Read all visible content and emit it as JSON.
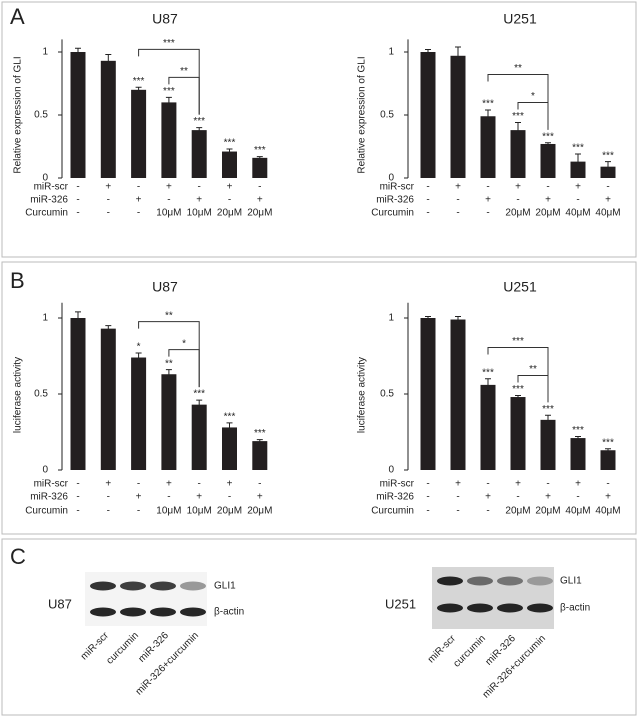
{
  "panel_labels": [
    "A",
    "B",
    "C"
  ],
  "chart_data": [
    {
      "type": "bar",
      "title": "U87",
      "y_label": "Relative expression of GLI",
      "color": "#231f20",
      "values": [
        1.0,
        0.93,
        0.7,
        0.6,
        0.38,
        0.21,
        0.16
      ],
      "errors": [
        0.03,
        0.05,
        0.02,
        0.04,
        0.02,
        0.02,
        0.01
      ],
      "stars": [
        null,
        null,
        "***",
        "***",
        "***",
        "***",
        "***"
      ],
      "brackets": [
        "***",
        "**"
      ],
      "ylim": [
        0,
        1.1
      ],
      "yticks": [
        0,
        0.5,
        1
      ],
      "conditions": [
        {
          "name": "miR-scr",
          "values": [
            "-",
            "+",
            "-",
            "+",
            "-",
            "+",
            "-"
          ]
        },
        {
          "name": "miR-326",
          "values": [
            "-",
            "-",
            "+",
            "-",
            "+",
            "-",
            "+"
          ]
        },
        {
          "name": "Curcumin",
          "values": [
            "-",
            "-",
            "-",
            "10μM",
            "10μM",
            "20μM",
            "20μM"
          ]
        }
      ]
    },
    {
      "type": "bar",
      "title": "U251",
      "y_label": "Relative expression of GLI",
      "color": "#231f20",
      "values": [
        1.0,
        0.97,
        0.49,
        0.38,
        0.27,
        0.13,
        0.09
      ],
      "errors": [
        0.02,
        0.07,
        0.05,
        0.06,
        0.01,
        0.06,
        0.04
      ],
      "stars": [
        null,
        null,
        "***",
        "***",
        "***",
        "***",
        "***"
      ],
      "brackets": [
        "**",
        "*"
      ],
      "ylim": [
        0,
        1.1
      ],
      "yticks": [
        0,
        0.5,
        1
      ],
      "conditions": [
        {
          "name": "miR-scr",
          "values": [
            "-",
            "+",
            "-",
            "+",
            "-",
            "+",
            "-"
          ]
        },
        {
          "name": "miR-326",
          "values": [
            "-",
            "-",
            "+",
            "-",
            "+",
            "-",
            "+"
          ]
        },
        {
          "name": "Curcumin",
          "values": [
            "-",
            "-",
            "-",
            "20μM",
            "20μM",
            "40μM",
            "40μM"
          ]
        }
      ]
    },
    {
      "type": "bar",
      "title": "U87",
      "y_label": "luciferase activity",
      "color": "#231f20",
      "values": [
        1.0,
        0.93,
        0.74,
        0.63,
        0.43,
        0.28,
        0.19
      ],
      "errors": [
        0.04,
        0.02,
        0.03,
        0.03,
        0.03,
        0.03,
        0.01
      ],
      "stars": [
        null,
        null,
        "*",
        "**",
        "***",
        "***",
        "***"
      ],
      "brackets": [
        "**",
        "*"
      ],
      "ylim": [
        0,
        1.1
      ],
      "yticks": [
        0,
        0.5,
        1
      ],
      "conditions": [
        {
          "name": "miR-scr",
          "values": [
            "-",
            "+",
            "-",
            "+",
            "-",
            "+",
            "-"
          ]
        },
        {
          "name": "miR-326",
          "values": [
            "-",
            "-",
            "+",
            "-",
            "+",
            "-",
            "+"
          ]
        },
        {
          "name": "Curcumin",
          "values": [
            "-",
            "-",
            "-",
            "10μM",
            "10μM",
            "20μM",
            "20μM"
          ]
        }
      ]
    },
    {
      "type": "bar",
      "title": "U251",
      "y_label": "luciferase activity",
      "color": "#231f20",
      "values": [
        1.0,
        0.99,
        0.56,
        0.48,
        0.33,
        0.21,
        0.13
      ],
      "errors": [
        0.01,
        0.02,
        0.04,
        0.01,
        0.03,
        0.01,
        0.01
      ],
      "stars": [
        null,
        null,
        "***",
        "***",
        "***",
        "***",
        "***"
      ],
      "brackets": [
        "***",
        "**"
      ],
      "ylim": [
        0,
        1.1
      ],
      "yticks": [
        0,
        0.5,
        1
      ],
      "conditions": [
        {
          "name": "miR-scr",
          "values": [
            "-",
            "+",
            "-",
            "+",
            "-",
            "+",
            "-"
          ]
        },
        {
          "name": "miR-326",
          "values": [
            "-",
            "-",
            "+",
            "-",
            "+",
            "-",
            "+"
          ]
        },
        {
          "name": "Curcumin",
          "values": [
            "-",
            "-",
            "-",
            "20μM",
            "20μM",
            "40μM",
            "40μM"
          ]
        }
      ]
    }
  ],
  "blots": [
    {
      "cell_line": "U87",
      "bands": [
        "GLI1",
        "β-actin"
      ],
      "lanes": [
        "miR-scr",
        "curcumin",
        "miR-326",
        "miR-326+curcumin"
      ]
    },
    {
      "cell_line": "U251",
      "bands": [
        "GLI1",
        "β-actin"
      ],
      "lanes": [
        "miR-scr",
        "curcumin",
        "miR-326",
        "miR-326+curcumin"
      ]
    }
  ]
}
